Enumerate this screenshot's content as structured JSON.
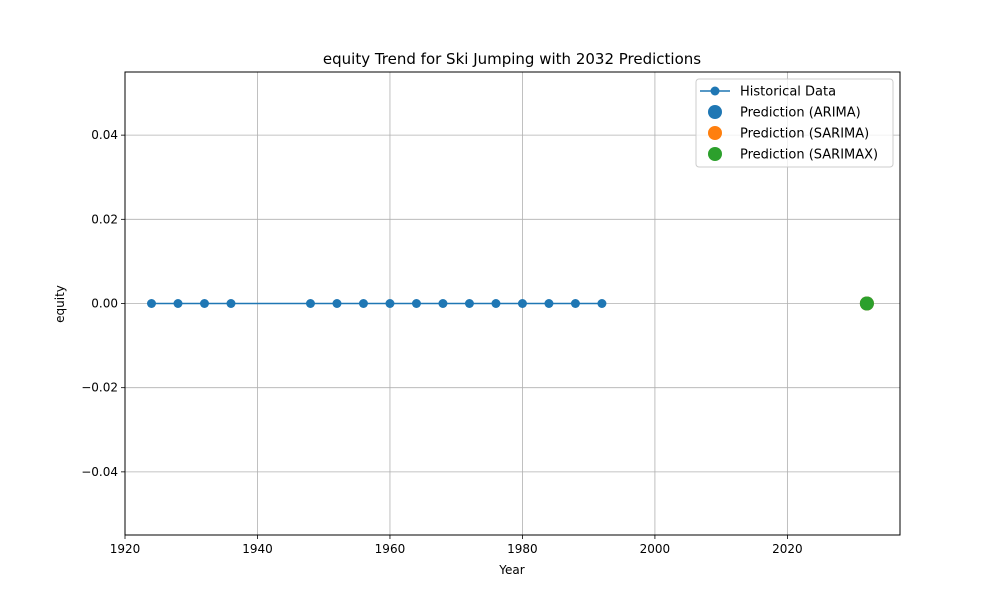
{
  "chart_data": {
    "type": "line",
    "title": "equity Trend for Ski Jumping with 2032 Predictions",
    "xlabel": "Year",
    "ylabel": "equity",
    "xlim": [
      1920,
      2037
    ],
    "ylim": [
      -0.055,
      0.055
    ],
    "x_ticks": [
      1920,
      1940,
      1960,
      1980,
      2000,
      2020
    ],
    "y_ticks": [
      -0.04,
      -0.02,
      0.0,
      0.02,
      0.04
    ],
    "x_tick_labels": [
      "1920",
      "1940",
      "1960",
      "1980",
      "2000",
      "2020"
    ],
    "y_tick_labels": [
      "−0.04",
      "−0.02",
      "0.00",
      "0.02",
      "0.04"
    ],
    "grid": true,
    "legend_position": "top-right",
    "series": [
      {
        "name": "Historical Data",
        "kind": "line-with-markers",
        "color": "#1f77b4",
        "x": [
          1924,
          1928,
          1932,
          1936,
          1948,
          1952,
          1956,
          1960,
          1964,
          1968,
          1972,
          1976,
          1980,
          1984,
          1988,
          1992
        ],
        "y": [
          0,
          0,
          0,
          0,
          0,
          0,
          0,
          0,
          0,
          0,
          0,
          0,
          0,
          0,
          0,
          0
        ]
      },
      {
        "name": "Prediction (ARIMA)",
        "kind": "scatter",
        "color": "#1f77b4",
        "x": [
          2032
        ],
        "y": [
          0
        ]
      },
      {
        "name": "Prediction (SARIMA)",
        "kind": "scatter",
        "color": "#ff7f0e",
        "x": [
          2032
        ],
        "y": [
          0
        ]
      },
      {
        "name": "Prediction (SARIMAX)",
        "kind": "scatter",
        "color": "#2ca02c",
        "x": [
          2032
        ],
        "y": [
          0
        ]
      }
    ]
  }
}
